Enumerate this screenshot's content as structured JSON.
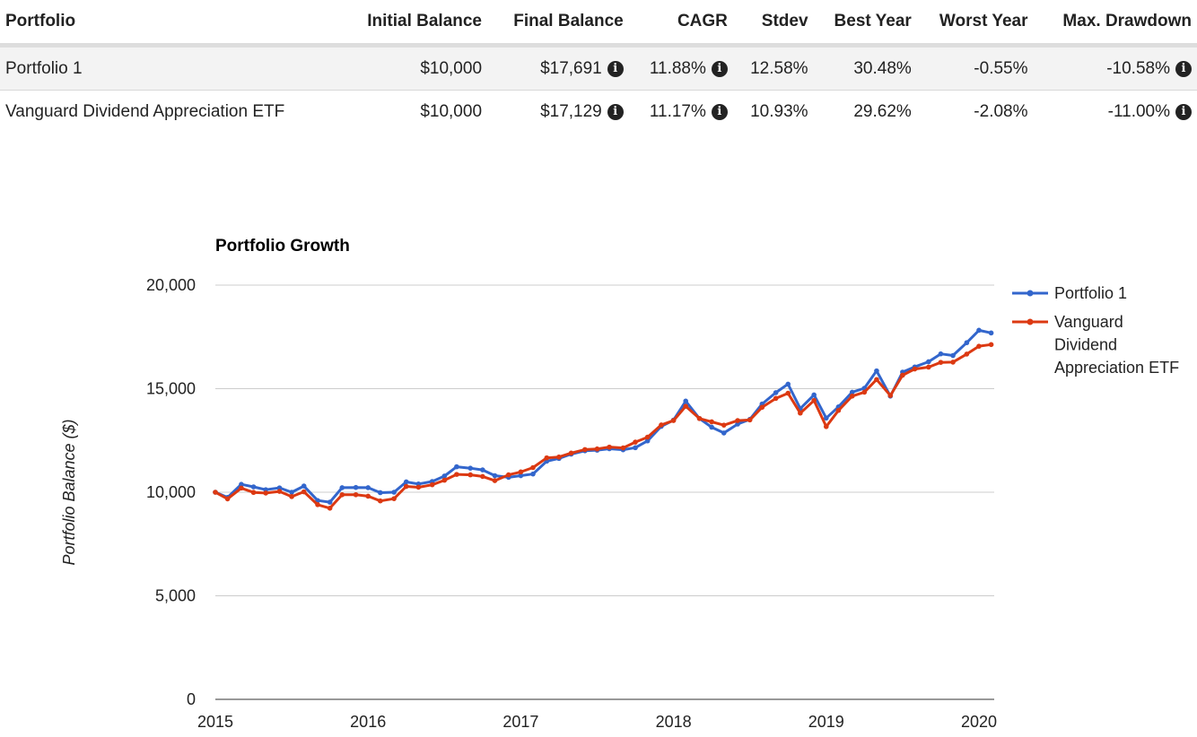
{
  "table": {
    "headers": [
      "Portfolio",
      "Initial Balance",
      "Final Balance",
      "CAGR",
      "Stdev",
      "Best Year",
      "Worst Year",
      "Max. Drawdown"
    ],
    "rows": [
      {
        "portfolio": "Portfolio 1",
        "initial": "$10,000",
        "final": "$17,691",
        "cagr": "11.88%",
        "stdev": "12.58%",
        "best": "30.48%",
        "worst": "-0.55%",
        "drawdown": "-10.58%"
      },
      {
        "portfolio": "Vanguard Dividend Appreciation ETF",
        "initial": "$10,000",
        "final": "$17,129",
        "cagr": "11.17%",
        "stdev": "10.93%",
        "best": "29.62%",
        "worst": "-2.08%",
        "drawdown": "-11.00%"
      }
    ],
    "info_icon": "info-circle-icon"
  },
  "chart_data": {
    "type": "line",
    "title": "Portfolio Growth",
    "xlabel": "",
    "ylabel": "Portfolio Balance ($)",
    "ylim": [
      0,
      20000
    ],
    "yticks": [
      0,
      5000,
      10000,
      15000,
      20000
    ],
    "ytick_labels": [
      "0",
      "5,000",
      "10,000",
      "15,000",
      "20,000"
    ],
    "xlim": [
      2015,
      2020.1
    ],
    "xticks": [
      2015,
      2016,
      2017,
      2018,
      2019,
      2020
    ],
    "xtick_labels": [
      "2015",
      "2016",
      "2017",
      "2018",
      "2019",
      "2020"
    ],
    "grid": true,
    "legend": "right",
    "series": [
      {
        "name": "Portfolio 1",
        "color": "#3366cc",
        "values": [
          [
            2015.0,
            10000
          ],
          [
            2015.08,
            9750
          ],
          [
            2015.17,
            10380
          ],
          [
            2015.25,
            10260
          ],
          [
            2015.33,
            10120
          ],
          [
            2015.42,
            10210
          ],
          [
            2015.5,
            10000
          ],
          [
            2015.58,
            10300
          ],
          [
            2015.67,
            9600
          ],
          [
            2015.75,
            9520
          ],
          [
            2015.83,
            10220
          ],
          [
            2015.92,
            10230
          ],
          [
            2016.0,
            10220
          ],
          [
            2016.08,
            9980
          ],
          [
            2016.17,
            10000
          ],
          [
            2016.25,
            10500
          ],
          [
            2016.33,
            10400
          ],
          [
            2016.42,
            10520
          ],
          [
            2016.5,
            10780
          ],
          [
            2016.58,
            11230
          ],
          [
            2016.67,
            11160
          ],
          [
            2016.75,
            11080
          ],
          [
            2016.83,
            10800
          ],
          [
            2016.92,
            10720
          ],
          [
            2017.0,
            10800
          ],
          [
            2017.08,
            10880
          ],
          [
            2017.17,
            11500
          ],
          [
            2017.25,
            11630
          ],
          [
            2017.33,
            11840
          ],
          [
            2017.42,
            12000
          ],
          [
            2017.5,
            12030
          ],
          [
            2017.58,
            12100
          ],
          [
            2017.67,
            12050
          ],
          [
            2017.75,
            12150
          ],
          [
            2017.83,
            12480
          ],
          [
            2017.92,
            13180
          ],
          [
            2018.0,
            13480
          ],
          [
            2018.08,
            14400
          ],
          [
            2018.17,
            13560
          ],
          [
            2018.25,
            13140
          ],
          [
            2018.33,
            12860
          ],
          [
            2018.42,
            13290
          ],
          [
            2018.5,
            13520
          ],
          [
            2018.58,
            14260
          ],
          [
            2018.67,
            14810
          ],
          [
            2018.75,
            15220
          ],
          [
            2018.83,
            14040
          ],
          [
            2018.92,
            14700
          ],
          [
            2019.0,
            13580
          ],
          [
            2019.08,
            14120
          ],
          [
            2019.17,
            14830
          ],
          [
            2019.25,
            15020
          ],
          [
            2019.33,
            15860
          ],
          [
            2019.42,
            14640
          ],
          [
            2019.5,
            15800
          ],
          [
            2019.58,
            16050
          ],
          [
            2019.67,
            16300
          ],
          [
            2019.75,
            16680
          ],
          [
            2019.83,
            16600
          ],
          [
            2019.92,
            17220
          ],
          [
            2020.0,
            17820
          ],
          [
            2020.08,
            17691
          ]
        ]
      },
      {
        "name": "Vanguard Dividend Appreciation ETF",
        "color": "#dc3912",
        "values": [
          [
            2015.0,
            10000
          ],
          [
            2015.08,
            9680
          ],
          [
            2015.17,
            10200
          ],
          [
            2015.25,
            9990
          ],
          [
            2015.33,
            9960
          ],
          [
            2015.42,
            10040
          ],
          [
            2015.5,
            9790
          ],
          [
            2015.58,
            10020
          ],
          [
            2015.67,
            9400
          ],
          [
            2015.75,
            9230
          ],
          [
            2015.83,
            9880
          ],
          [
            2015.92,
            9880
          ],
          [
            2016.0,
            9810
          ],
          [
            2016.08,
            9580
          ],
          [
            2016.17,
            9690
          ],
          [
            2016.25,
            10280
          ],
          [
            2016.33,
            10240
          ],
          [
            2016.42,
            10360
          ],
          [
            2016.5,
            10580
          ],
          [
            2016.58,
            10860
          ],
          [
            2016.67,
            10840
          ],
          [
            2016.75,
            10760
          ],
          [
            2016.83,
            10560
          ],
          [
            2016.92,
            10840
          ],
          [
            2017.0,
            10980
          ],
          [
            2017.08,
            11190
          ],
          [
            2017.17,
            11660
          ],
          [
            2017.25,
            11700
          ],
          [
            2017.33,
            11890
          ],
          [
            2017.42,
            12060
          ],
          [
            2017.5,
            12090
          ],
          [
            2017.58,
            12180
          ],
          [
            2017.67,
            12140
          ],
          [
            2017.75,
            12420
          ],
          [
            2017.83,
            12660
          ],
          [
            2017.92,
            13250
          ],
          [
            2018.0,
            13460
          ],
          [
            2018.08,
            14150
          ],
          [
            2018.17,
            13560
          ],
          [
            2018.25,
            13400
          ],
          [
            2018.33,
            13240
          ],
          [
            2018.42,
            13460
          ],
          [
            2018.5,
            13490
          ],
          [
            2018.58,
            14100
          ],
          [
            2018.67,
            14530
          ],
          [
            2018.75,
            14780
          ],
          [
            2018.83,
            13820
          ],
          [
            2018.92,
            14430
          ],
          [
            2019.0,
            13170
          ],
          [
            2019.08,
            13950
          ],
          [
            2019.17,
            14640
          ],
          [
            2019.25,
            14830
          ],
          [
            2019.33,
            15440
          ],
          [
            2019.42,
            14670
          ],
          [
            2019.5,
            15650
          ],
          [
            2019.58,
            15950
          ],
          [
            2019.67,
            16040
          ],
          [
            2019.75,
            16270
          ],
          [
            2019.83,
            16280
          ],
          [
            2019.92,
            16670
          ],
          [
            2020.0,
            17050
          ],
          [
            2020.08,
            17129
          ]
        ]
      }
    ]
  }
}
